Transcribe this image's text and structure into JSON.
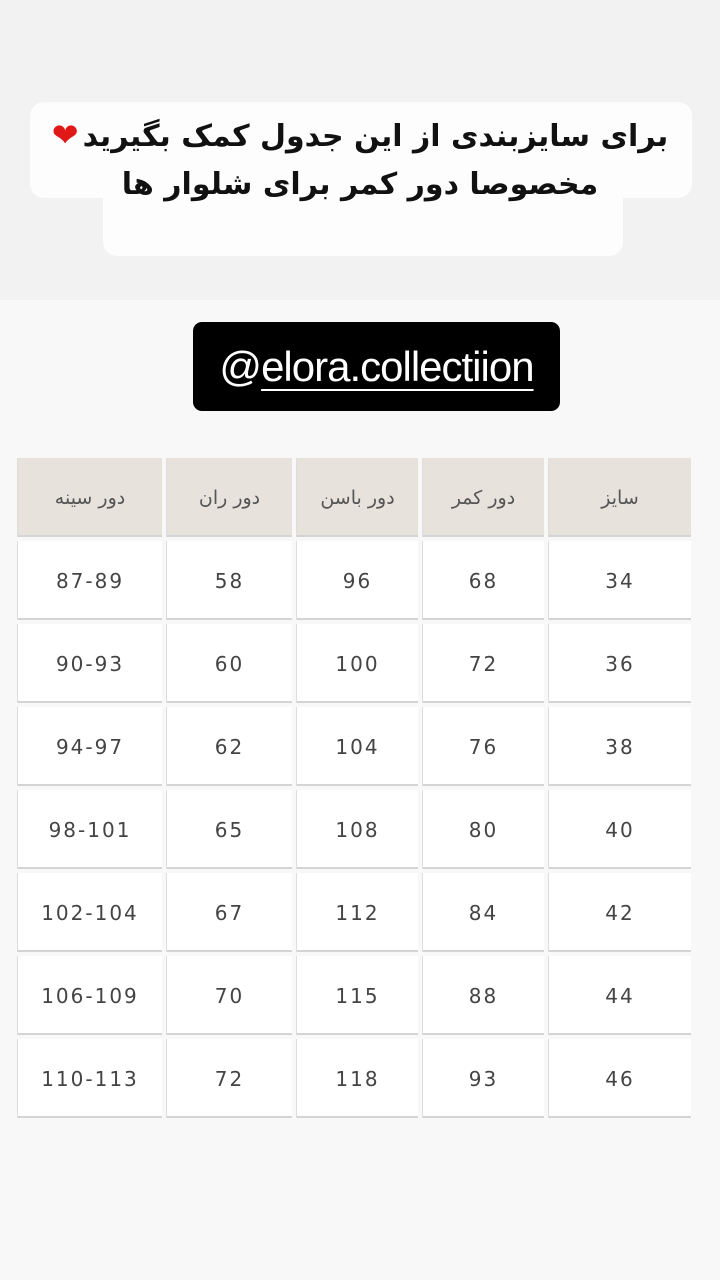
{
  "caption": {
    "line1": "برای سایزبندی از این جدول کمک بگیرید",
    "emoji": "❤️",
    "line2": "مخصوصا دور کمر برای شلوار ها"
  },
  "mention": {
    "at": "@",
    "handle": "elora.collectiion"
  },
  "table": {
    "headers": [
      "سایز",
      "دور کمر",
      "دور باسن",
      "دور ران",
      "دور سینه"
    ],
    "rows": [
      [
        "34",
        "68",
        "96",
        "58",
        "87-89"
      ],
      [
        "36",
        "72",
        "100",
        "60",
        "90-93"
      ],
      [
        "38",
        "76",
        "104",
        "62",
        "94-97"
      ],
      [
        "40",
        "80",
        "108",
        "65",
        "98-101"
      ],
      [
        "42",
        "84",
        "112",
        "67",
        "102-104"
      ],
      [
        "44",
        "88",
        "115",
        "70",
        "106-109"
      ],
      [
        "46",
        "93",
        "118",
        "72",
        "110-113"
      ]
    ]
  },
  "colors": {
    "header_bg": "#e8e2dc",
    "tag_bg": "#000000",
    "heart": "#e01818"
  }
}
